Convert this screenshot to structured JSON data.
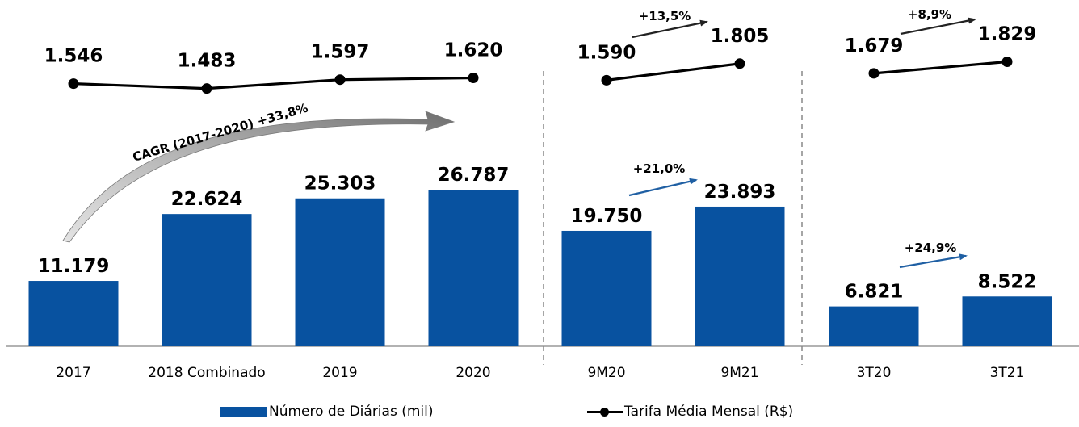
{
  "chart_data": {
    "type": "bar",
    "categories": [
      "2017",
      "2018 Combinado",
      "2019",
      "2020",
      "9M20",
      "9M21",
      "3T20",
      "3T21"
    ],
    "groups": [
      [
        "2017",
        "2018 Combinado",
        "2019",
        "2020"
      ],
      [
        "9M20",
        "9M21"
      ],
      [
        "3T20",
        "3T21"
      ]
    ],
    "series": [
      {
        "name": "Número de Diárias (mil)",
        "type": "bar",
        "color": "#0852a0",
        "values": [
          11179,
          22624,
          25303,
          26787,
          19750,
          23893,
          6821,
          8522
        ],
        "labels": [
          "11.179",
          "22.624",
          "25.303",
          "26.787",
          "19.750",
          "23.893",
          "6.821",
          "8.522"
        ]
      },
      {
        "name": "Tarifa Média Mensal (R$)",
        "type": "line",
        "color": "#000000",
        "values": [
          1546,
          1483,
          1597,
          1620,
          1590,
          1805,
          1679,
          1829
        ],
        "labels": [
          "1.546",
          "1.483",
          "1.597",
          "1.620",
          "1.590",
          "1.805",
          "1.679",
          "1.829"
        ]
      }
    ],
    "annotations": [
      {
        "text": "CAGR (2017-2020) +33,8%",
        "from": "2017",
        "to": "2020",
        "series": "Número de Diárias (mil)"
      },
      {
        "text": "+21,0%",
        "from": "9M20",
        "to": "9M21",
        "series": "Número de Diárias (mil)"
      },
      {
        "text": "+24,9%",
        "from": "3T20",
        "to": "3T21",
        "series": "Número de Diárias (mil)"
      },
      {
        "text": "+13,5%",
        "from": "9M20",
        "to": "9M21",
        "series": "Tarifa Média Mensal (R$)"
      },
      {
        "text": "+8,9%",
        "from": "3T20",
        "to": "3T21",
        "series": "Tarifa Média Mensal (R$)"
      }
    ],
    "legend_position": "bottom",
    "grid": false
  }
}
